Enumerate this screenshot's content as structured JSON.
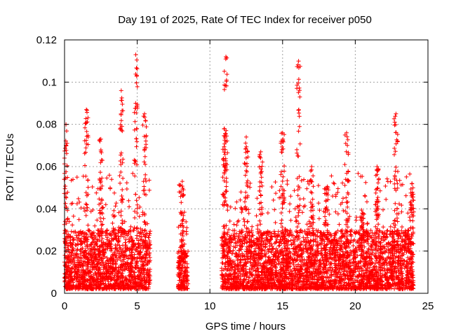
{
  "chart_data": {
    "type": "scatter",
    "title": "Day 191 of 2025, Rate Of TEC Index for receiver p050",
    "xlabel": "GPS time / hours",
    "ylabel": "ROTI / TECUs",
    "xlim": [
      0,
      25
    ],
    "ylim": [
      0,
      0.12
    ],
    "xticks": [
      "0",
      "5",
      "10",
      "15",
      "20",
      "25"
    ],
    "yticks": [
      "0",
      "0.02",
      "0.04",
      "0.06",
      "0.08",
      "0.1",
      "0.12"
    ],
    "grid": true,
    "marker": "+",
    "color": "#ff0000",
    "segments": [
      {
        "x_range": [
          0.0,
          5.9
        ],
        "typical_y": [
          0.002,
          0.03
        ]
      },
      {
        "x_range": [
          7.8,
          8.5
        ],
        "typical_y": [
          0.002,
          0.02
        ]
      },
      {
        "x_range": [
          10.8,
          24.0
        ],
        "typical_y": [
          0.002,
          0.03
        ]
      }
    ],
    "peaks": [
      {
        "x": 0.1,
        "y": 0.08
      },
      {
        "x": 1.5,
        "y": 0.087
      },
      {
        "x": 2.5,
        "y": 0.073
      },
      {
        "x": 3.9,
        "y": 0.096
      },
      {
        "x": 4.9,
        "y": 0.113
      },
      {
        "x": 5.5,
        "y": 0.085
      },
      {
        "x": 8.1,
        "y": 0.053
      },
      {
        "x": 11.0,
        "y": 0.078
      },
      {
        "x": 11.1,
        "y": 0.112
      },
      {
        "x": 12.5,
        "y": 0.074
      },
      {
        "x": 13.5,
        "y": 0.067
      },
      {
        "x": 15.0,
        "y": 0.076
      },
      {
        "x": 16.1,
        "y": 0.11
      },
      {
        "x": 17.0,
        "y": 0.06
      },
      {
        "x": 18.0,
        "y": 0.05
      },
      {
        "x": 19.4,
        "y": 0.076
      },
      {
        "x": 20.5,
        "y": 0.038
      },
      {
        "x": 21.5,
        "y": 0.06
      },
      {
        "x": 22.8,
        "y": 0.085
      },
      {
        "x": 23.9,
        "y": 0.052
      }
    ]
  }
}
